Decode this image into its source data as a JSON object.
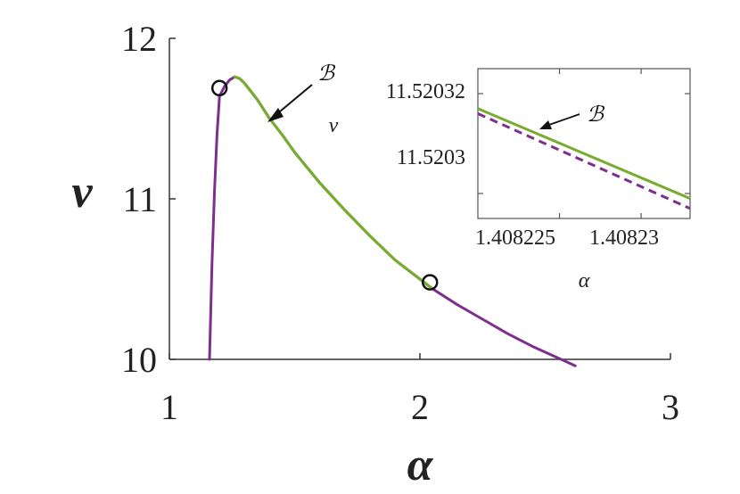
{
  "chart_data": [
    {
      "type": "line",
      "xlabel": "α",
      "ylabel": "ν",
      "xlim": [
        1,
        3
      ],
      "ylim": [
        10,
        12
      ],
      "xticks": [
        "1",
        "2",
        "3"
      ],
      "yticks": [
        "10",
        "11",
        "12"
      ],
      "series": [
        {
          "color": "#7e2f8e",
          "x": [
            1.16,
            1.17,
            1.18,
            1.19,
            1.2,
            1.22,
            1.24,
            1.26,
            1.28,
            1.3,
            1.35,
            1.4,
            1.45,
            1.5,
            1.6,
            1.7,
            1.8,
            1.9,
            2.0,
            2.05,
            2.15,
            2.25,
            2.35,
            2.45,
            2.55,
            2.62
          ],
          "y": [
            10.0,
            10.6,
            11.05,
            11.4,
            11.64,
            11.7,
            11.74,
            11.76,
            11.75,
            11.72,
            11.62,
            11.5,
            11.4,
            11.29,
            11.1,
            10.93,
            10.77,
            10.62,
            10.5,
            10.44,
            10.34,
            10.25,
            10.16,
            10.08,
            10.01,
            9.96
          ]
        },
        {
          "color": "#77ac30",
          "x": [
            1.26,
            1.28,
            1.3,
            1.35,
            1.4,
            1.45,
            1.5,
            1.6,
            1.7,
            1.8,
            1.9,
            2.0,
            2.05
          ],
          "y": [
            11.76,
            11.75,
            11.72,
            11.62,
            11.5,
            11.4,
            11.29,
            11.1,
            10.93,
            10.77,
            10.62,
            10.5,
            10.44
          ]
        }
      ],
      "markers": [
        {
          "x": 1.2,
          "y": 11.69
        },
        {
          "x": 2.04,
          "y": 10.48
        }
      ],
      "annotations": [
        {
          "text": "ℬ",
          "x": 1.41,
          "y": 11.53
        }
      ]
    },
    {
      "type": "line",
      "xlabel": "α",
      "ylabel": "ν",
      "xlim": [
        1.40822,
        1.408233
      ],
      "ylim": [
        11.520295,
        11.520325
      ],
      "xticks": [
        "1.408225",
        "1.40823"
      ],
      "yticks": [
        "11.5203",
        "11.52032"
      ],
      "series": [
        {
          "color": "#77ac30",
          "line_style": "solid",
          "x": [
            1.40822,
            1.408233
          ],
          "y": [
            11.520317,
            11.520299
          ]
        },
        {
          "color": "#7e2f8e",
          "line_style": "dashed",
          "x": [
            1.40822,
            1.408233
          ],
          "y": [
            11.520316,
            11.520297
          ]
        }
      ],
      "annotations": [
        {
          "text": "ℬ",
          "x": 1.408226,
          "y": 11.520311
        }
      ]
    }
  ]
}
